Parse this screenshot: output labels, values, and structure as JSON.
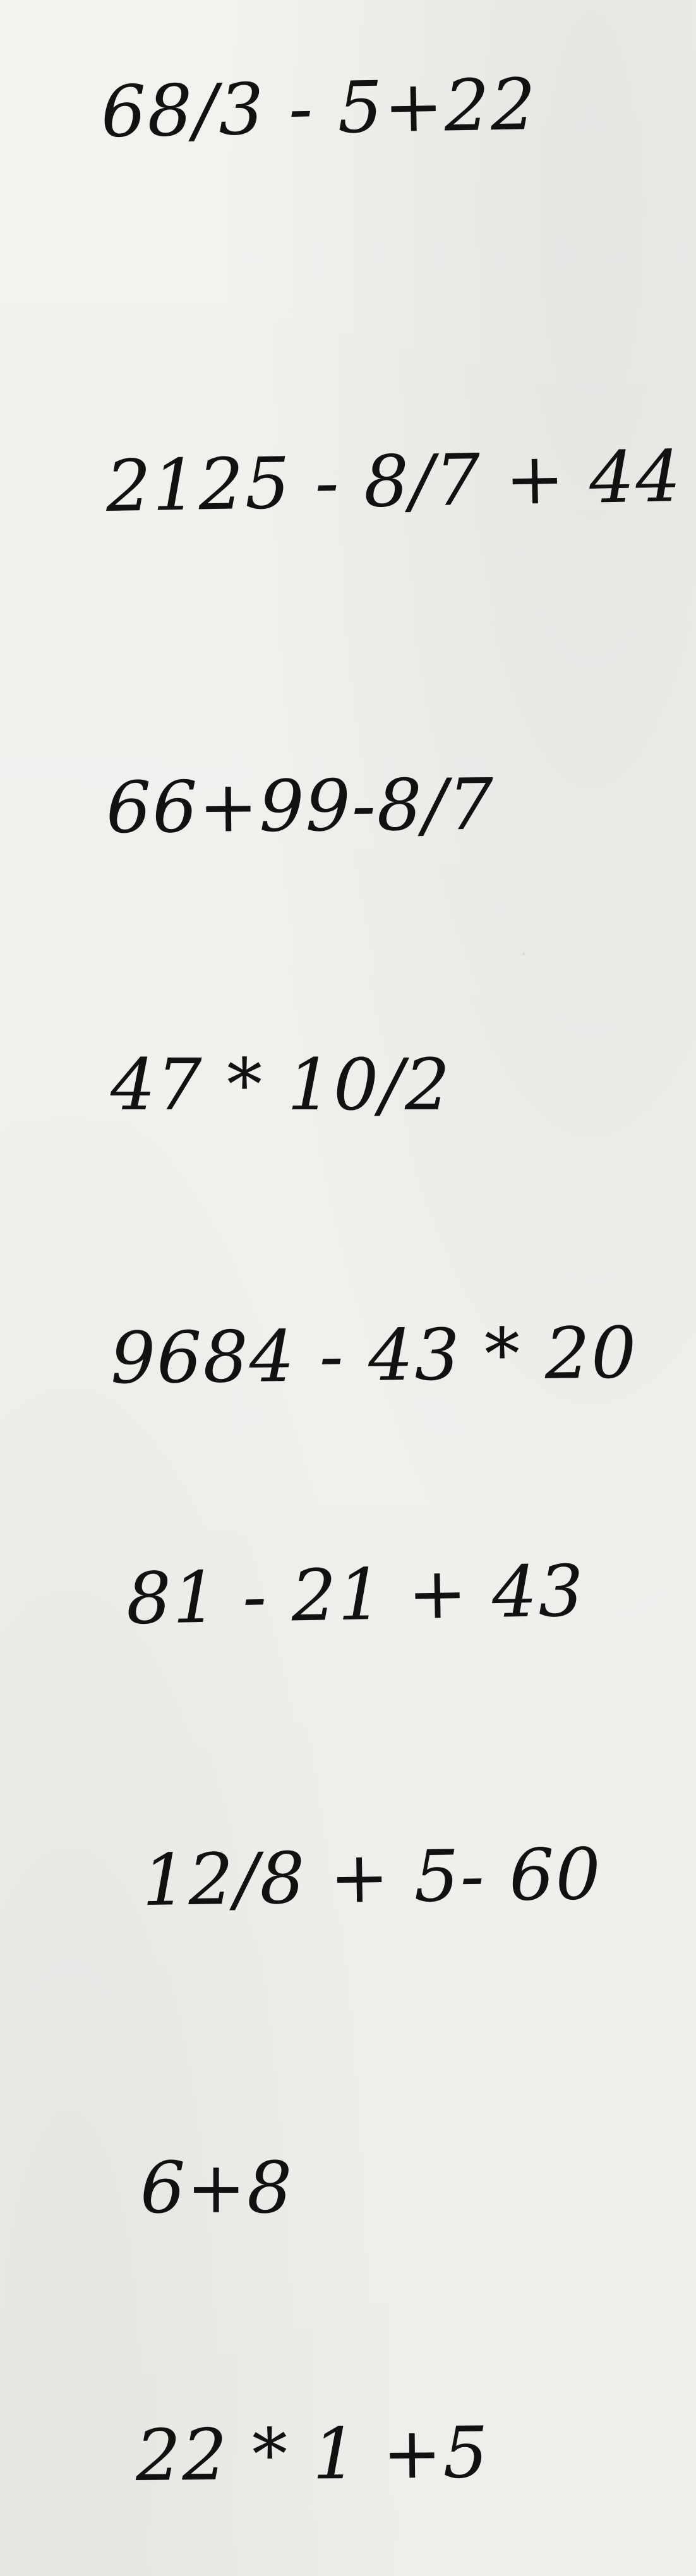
{
  "lines": [
    "68/3 - 5+22",
    "2125 - 8/7 + 44",
    "66+99-8/7",
    "47 * 10/2",
    "9684 - 43 * 20",
    "81 - 21 + 43",
    "12/8 + 5- 60",
    "6+8",
    "22 * 1 +5"
  ]
}
